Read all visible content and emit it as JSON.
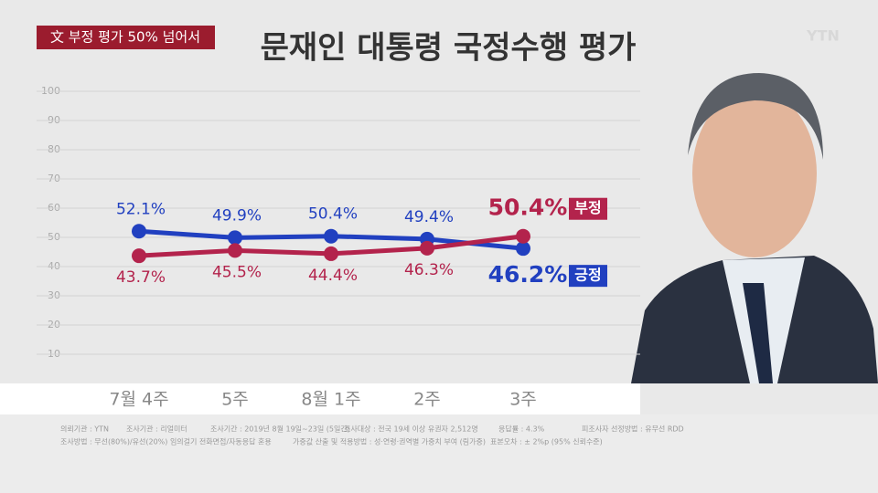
{
  "chart_data": {
    "type": "line",
    "tag": "文 부정 평가 50% 넘어서",
    "title": "문재인 대통령 국정수행 평가",
    "logo": "YTN",
    "categories": [
      "7월 4주",
      "5주",
      "8월 1주",
      "2주",
      "3주"
    ],
    "series": [
      {
        "name": "긍정",
        "color": "#2140c0",
        "values": [
          52.1,
          49.9,
          50.4,
          49.4,
          46.2
        ],
        "value_labels": [
          "52.1%",
          "49.9%",
          "50.4%",
          "49.4%",
          "46.2%"
        ]
      },
      {
        "name": "부정",
        "color": "#b3234c",
        "values": [
          43.7,
          45.5,
          44.4,
          46.3,
          50.4
        ],
        "value_labels": [
          "43.7%",
          "45.5%",
          "44.4%",
          "46.3%",
          "50.4%"
        ]
      }
    ],
    "ylim": [
      0,
      100
    ],
    "yticks": [
      10,
      20,
      30,
      40,
      50,
      60,
      70,
      80,
      90,
      100
    ],
    "grid": true,
    "notes": [
      "의뢰기관 : YTN",
      "조사기관 : 리얼미터",
      "조사기간 : 2019년 8월 19일~23일 (5일간)",
      "조사대상 : 전국 19세 이상 유권자 2,512명",
      "응답률 : 4.3%",
      "피조사자 선정방법 : 유무선 RDD",
      "조사방법 : 무선(80%)/유선(20%) 임의걸기 전화면접/자동응답 혼용",
      "가중값 산출 및 적용방법 : 성·연령·권역별 가중치 부여 (림가중)",
      "표본오차 : ± 2%p (95% 신뢰수준)"
    ]
  }
}
